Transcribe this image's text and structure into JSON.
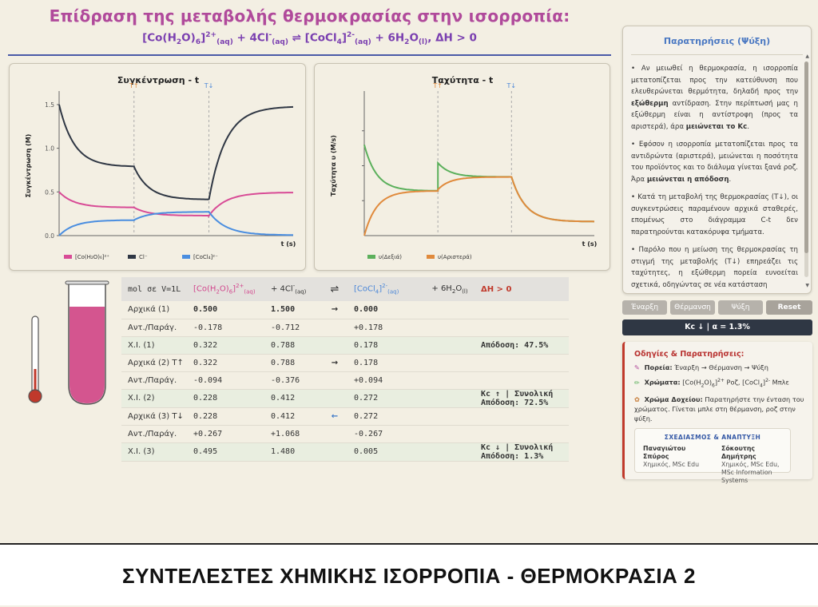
{
  "header": {
    "title": "Επίδραση της μεταβολής θερμοκρασίας στην ισορροπία:",
    "eq_reactant": "[Co(H",
    "eq_dh": ", ΔΗ > 0"
  },
  "chart_data": [
    {
      "type": "line",
      "title": "Συγκέντρωση - t",
      "ylabel": "Συγκέντρωση (M)",
      "xlabel": "t (s)",
      "ylim": [
        0,
        1.6
      ],
      "yticks": [
        "0.0",
        "0.5",
        "1.0",
        "1.5"
      ],
      "markers": [
        {
          "label": "T↑",
          "color": "#e08a3c"
        },
        {
          "label": "T↓",
          "color": "#4a86d8"
        }
      ],
      "legend": [
        "[Co(H₂O)₆]²⁺",
        "Cl⁻",
        "[CoCl₄]²⁻"
      ],
      "legend_position": "bottom",
      "series": [
        {
          "name": "[Co(H₂O)₆]²⁺",
          "color": "#d84b96",
          "segments": [
            [
              0.5,
              0.322
            ],
            [
              0.322,
              0.228
            ],
            [
              0.228,
              0.495
            ]
          ]
        },
        {
          "name": "Cl⁻",
          "color": "#2f3744",
          "segments": [
            [
              1.5,
              0.788
            ],
            [
              0.788,
              0.412
            ],
            [
              0.412,
              1.48
            ]
          ]
        },
        {
          "name": "[CoCl₄]²⁻",
          "color": "#4a8ee0",
          "segments": [
            [
              0.0,
              0.178
            ],
            [
              0.178,
              0.272
            ],
            [
              0.272,
              0.005
            ]
          ]
        }
      ]
    },
    {
      "type": "line",
      "title": "Ταχύτητα - t",
      "ylabel": "Ταχύτητα υ (M/s)",
      "xlabel": "t (s)",
      "markers": [
        {
          "label": "T↑",
          "color": "#e08a3c"
        },
        {
          "label": "T↓",
          "color": "#4a86d8"
        }
      ],
      "legend": [
        "υ(Δεξιά)",
        "υ(Αριστερά)"
      ],
      "legend_position": "bottom",
      "series": [
        {
          "name": "υ(Δεξιά)",
          "color": "#5cb05c"
        },
        {
          "name": "υ(Αριστερά)",
          "color": "#e08a3c"
        }
      ]
    }
  ],
  "table": {
    "head": {
      "col0": "mol σε V=1L",
      "col1": "[Co(H",
      "col2": "+ 4Cl",
      "col3": "⇌",
      "col4": "[CoCl",
      "col5": "+ 6H",
      "col6": "ΔΗ > 0"
    },
    "rows": [
      {
        "label": "Αρχικά (1)",
        "a": "0.500",
        "b": "1.500",
        "arrow": "→",
        "c": "0.000",
        "note": "",
        "bold": true
      },
      {
        "label": "Αντ./Παράγ.",
        "a": "-0.178",
        "b": "-0.712",
        "arrow": "",
        "c": "+0.178",
        "note": ""
      },
      {
        "label": "Χ.Ι. (1)",
        "a": "0.322",
        "b": "0.788",
        "arrow": "",
        "c": "0.178",
        "note": "Απόδοση: 47.5%"
      },
      {
        "label": "Αρχικά (2) T↑",
        "a": "0.322",
        "b": "0.788",
        "arrow": "→",
        "c": "0.178",
        "note": ""
      },
      {
        "label": "Αντ./Παράγ.",
        "a": "-0.094",
        "b": "-0.376",
        "arrow": "",
        "c": "+0.094",
        "note": ""
      },
      {
        "label": "Χ.Ι. (2)",
        "a": "0.228",
        "b": "0.412",
        "arrow": "",
        "c": "0.272",
        "note": "Kc ↑ | Συνολική Απόδοση: 72.5%"
      },
      {
        "label": "Αρχικά (3) T↓",
        "a": "0.228",
        "b": "0.412",
        "arrow": "←",
        "c": "0.272",
        "note": ""
      },
      {
        "label": "Αντ./Παράγ.",
        "a": "+0.267",
        "b": "+1.068",
        "arrow": "",
        "c": "-0.267",
        "note": ""
      },
      {
        "label": "Χ.Ι. (3)",
        "a": "0.495",
        "b": "1.480",
        "arrow": "",
        "c": "0.005",
        "note": "Kc ↓ | Συνολική Απόδοση: 1.3%"
      }
    ]
  },
  "observations": {
    "title": "Παρατηρήσεις (Ψύξη)",
    "p1a": "• Αν μειωθεί η θερμοκρασία, η ισορροπία μετατοπίζεται προς την κατεύθυνση που ελευθερώνεται θερμότητα, δηλαδή προς την ",
    "p1b": "εξώθερμη",
    "p1c": " αντίδραση. Στην περίπτωσή μας η εξώθερμη είναι η αντίστροφη (προς τα αριστερά), άρα ",
    "p1d": "μειώνεται το Kc",
    "p1e": ".",
    "p2a": "• Εφόσον η ισορροπία μετατοπίζεται προς τα αντιδρώντα (αριστερά), μειώνεται η ποσότητα του προϊόντος και το διάλυμα γίνεται ξανά ροζ. Άρα ",
    "p2b": "μειώνεται η απόδοση",
    "p2c": ".",
    "p3": "• Κατά τη μεταβολή της θερμοκρασίας (T↓), οι συγκεντρώσεις παραμένουν αρχικά σταθερές, επομένως στο διάγραμμα C-t δεν παρατηρούνται κατακόρυφα τμήματα.",
    "p4": "• Παρόλο που η μείωση της θερμοκρασίας τη στιγμή της μεταβολής (T↓) επηρεάζει τις ταχύτητες, η εξώθερμη πορεία ευνοείται σχετικά, οδηγώντας σε νέα κατάσταση"
  },
  "controls": {
    "start": "Έναρξη",
    "heat": "Θέρμανση",
    "cool": "Ψύξη",
    "reset": "Reset",
    "status": "Kc ↓ | α = 1.3%"
  },
  "guide": {
    "title": "Οδηγίες & Παρατηρήσεις:",
    "path_label": "Πορεία:",
    "path_text": " Έναρξη → Θέρμανση → Ψύξη",
    "colors_label": "Χρώματα:",
    "colors_text_a": " [Co(H",
    "colors_text_b": " Ροζ, [CoCl",
    "colors_text_c": " Μπλε",
    "vessel_label": "Χρώμα Δοχείου:",
    "vessel_text": " Παρατηρήστε την ένταση του χρώματος. Γίνεται μπλε στη θέρμανση, ροζ στην ψύξη."
  },
  "credits": {
    "heading": "ΣΧΕΔΙΑΣΜΟΣ & ΑΝΑΠΤΥΞΗ",
    "name1": "Παναγιώτου Σπύρος",
    "role1": "Χημικός, MSc Edu",
    "name2": "Σόκουτης Δημήτρης",
    "role2": "Χημικός, MSc Edu, MSc Information Systems"
  },
  "banner": "ΣΥΝΤΕΛΕΣΤΕΣ ΧΗΜΙΚΗΣ ΙΣΟΡΡΟΠΙΑ - ΘΕΡΜΟΚΡΑΣΙΑ 2",
  "colors": {
    "pink": "#d84b96",
    "dark": "#2f3744",
    "blue": "#4a8ee0",
    "green": "#5cb05c",
    "orange": "#e08a3c",
    "purple": "#7a3fb0"
  }
}
